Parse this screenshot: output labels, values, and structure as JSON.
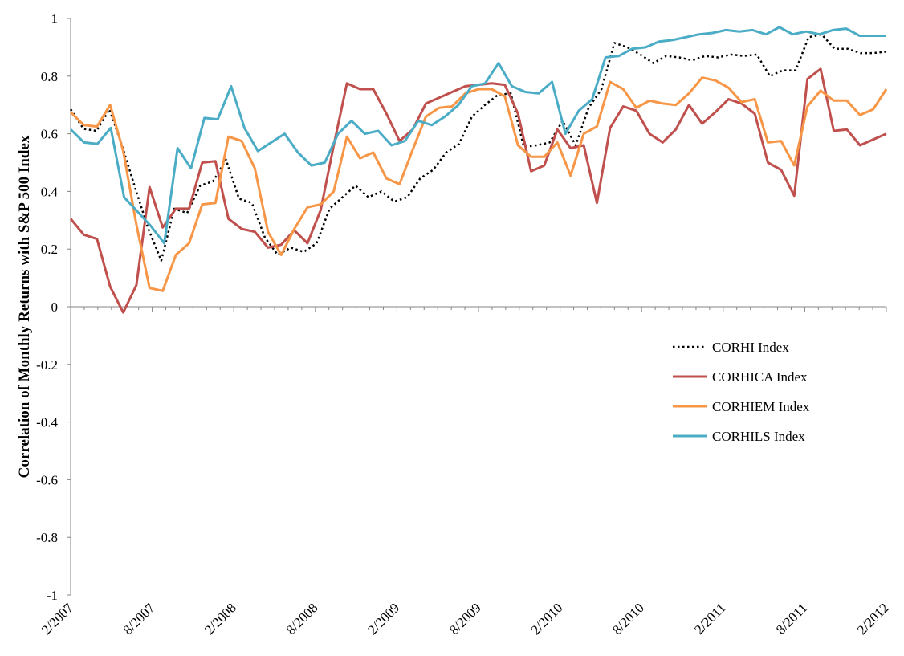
{
  "chart_data": {
    "type": "line",
    "ylabel": "Correlation of Monthly Returns with S&P 500 Index",
    "xlabel": "",
    "ylim": [
      -1,
      1
    ],
    "y_ticks": [
      "1",
      "0.8",
      "0.6",
      "0.4",
      "0.2",
      "0",
      "-0.2",
      "-0.4",
      "-0.6",
      "-0.8",
      "-1"
    ],
    "x_tick_labels": [
      "2/2007",
      "8/2007",
      "2/2008",
      "8/2008",
      "2/2009",
      "8/2009",
      "2/2010",
      "8/2010",
      "2/2011",
      "8/2011",
      "2/2012"
    ],
    "x_range": [
      "2/2007",
      "2/2012"
    ],
    "grid": false,
    "legend_position": "right, below zero line",
    "series": [
      {
        "name": "CORHI Index",
        "color": "#000000",
        "style": "dotted",
        "values": [
          0.685,
          0.617,
          0.61,
          0.685,
          0.555,
          0.41,
          0.27,
          0.16,
          0.34,
          0.325,
          0.42,
          0.435,
          0.51,
          0.375,
          0.36,
          0.24,
          0.18,
          0.205,
          0.19,
          0.22,
          0.34,
          0.38,
          0.42,
          0.38,
          0.4,
          0.365,
          0.38,
          0.445,
          0.475,
          0.535,
          0.565,
          0.66,
          0.7,
          0.735,
          0.74,
          0.555,
          0.56,
          0.57,
          0.645,
          0.56,
          0.69,
          0.755,
          0.915,
          0.9,
          0.875,
          0.845,
          0.87,
          0.865,
          0.855,
          0.87,
          0.865,
          0.875,
          0.87,
          0.875,
          0.8,
          0.82,
          0.82,
          0.935,
          0.945,
          0.895,
          0.895,
          0.88,
          0.88,
          0.885
        ]
      },
      {
        "name": "CORHICA Index",
        "color": "#C0504D",
        "style": "solid",
        "values": [
          0.305,
          0.25,
          0.235,
          0.07,
          -0.02,
          0.075,
          0.415,
          0.275,
          0.34,
          0.34,
          0.5,
          0.505,
          0.305,
          0.27,
          0.26,
          0.205,
          0.215,
          0.265,
          0.22,
          0.335,
          0.56,
          0.775,
          0.755,
          0.755,
          0.67,
          0.575,
          0.615,
          0.705,
          0.725,
          0.745,
          0.765,
          0.77,
          0.775,
          0.77,
          0.67,
          0.47,
          0.49,
          0.615,
          0.55,
          0.56,
          0.36,
          0.62,
          0.695,
          0.68,
          0.6,
          0.57,
          0.615,
          0.7,
          0.635,
          0.675,
          0.72,
          0.705,
          0.67,
          0.5,
          0.475,
          0.385,
          0.79,
          0.825,
          0.61,
          0.615,
          0.56,
          0.58,
          0.6
        ]
      },
      {
        "name": "CORHIEM Index",
        "color": "#F79646",
        "style": "solid",
        "values": [
          0.675,
          0.63,
          0.625,
          0.7,
          0.54,
          0.285,
          0.065,
          0.055,
          0.18,
          0.22,
          0.355,
          0.36,
          0.59,
          0.575,
          0.48,
          0.26,
          0.18,
          0.27,
          0.345,
          0.355,
          0.4,
          0.59,
          0.515,
          0.535,
          0.445,
          0.425,
          0.545,
          0.66,
          0.69,
          0.695,
          0.74,
          0.755,
          0.755,
          0.73,
          0.56,
          0.52,
          0.52,
          0.57,
          0.455,
          0.6,
          0.625,
          0.78,
          0.755,
          0.69,
          0.715,
          0.705,
          0.7,
          0.74,
          0.795,
          0.785,
          0.76,
          0.71,
          0.72,
          0.57,
          0.575,
          0.49,
          0.695,
          0.75,
          0.715,
          0.715,
          0.665,
          0.685,
          0.755
        ]
      },
      {
        "name": "CORHILS Index",
        "color": "#4BACC6",
        "style": "solid",
        "values": [
          0.615,
          0.57,
          0.565,
          0.62,
          0.38,
          0.33,
          0.28,
          0.22,
          0.55,
          0.48,
          0.655,
          0.65,
          0.765,
          0.62,
          0.54,
          0.57,
          0.6,
          0.535,
          0.49,
          0.5,
          0.6,
          0.645,
          0.6,
          0.61,
          0.56,
          0.575,
          0.645,
          0.63,
          0.66,
          0.7,
          0.765,
          0.775,
          0.845,
          0.765,
          0.745,
          0.74,
          0.78,
          0.6,
          0.68,
          0.72,
          0.865,
          0.87,
          0.895,
          0.9,
          0.92,
          0.925,
          0.935,
          0.945,
          0.95,
          0.96,
          0.955,
          0.96,
          0.945,
          0.97,
          0.945,
          0.955,
          0.945,
          0.96,
          0.965,
          0.94,
          0.94,
          0.94
        ]
      }
    ]
  }
}
